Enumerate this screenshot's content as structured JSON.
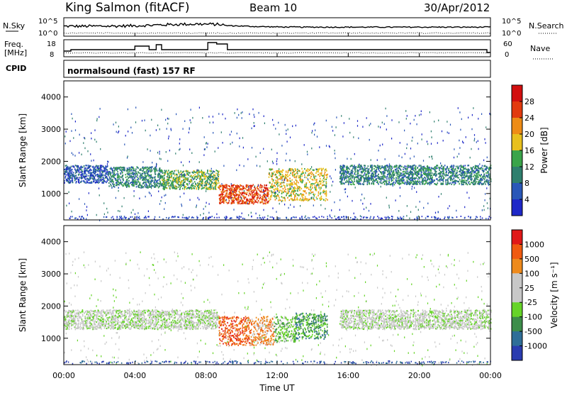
{
  "header": {
    "station": "King Salmon (fitACF)",
    "beam": "Beam 10",
    "date": "30/Apr/2012"
  },
  "panels": {
    "nsky_label": "N.Sky",
    "nsearch_label": "N.Search",
    "nsky_ticks": [
      "10^5",
      "10^0"
    ],
    "freq_label": [
      "Freq.",
      "[MHz]"
    ],
    "freq_ticks": [
      "18",
      "8"
    ],
    "nave_label": "Nave",
    "nave_ticks": [
      "60",
      "0"
    ],
    "cpid_label": "CPID",
    "cpid_text": "normalsound (fast) 157 RF"
  },
  "chart_data": [
    {
      "type": "heatmap",
      "title": "",
      "xlabel": "",
      "ylabel": "Slant Range [km]",
      "xlim": [
        "00:00",
        "24:00"
      ],
      "ylim": [
        180,
        4500
      ],
      "yticks": [
        "1000",
        "2000",
        "3000",
        "4000"
      ],
      "colorbar_label": "Power [dB]",
      "colorbar_ticks": [
        "4",
        "8",
        "12",
        "16",
        "20",
        "24",
        "28"
      ],
      "colorbar_colors": [
        "#1e28c8",
        "#2a57b8",
        "#2f7f6e",
        "#3aa44a",
        "#e8c01e",
        "#ee8c16",
        "#e23a0e",
        "#d20f0f"
      ],
      "bands": [
        {
          "t0": 0.0,
          "t1": 2.5,
          "r0": 1350,
          "r1": 1900,
          "level": 1
        },
        {
          "t0": 2.5,
          "t1": 5.5,
          "r0": 1200,
          "r1": 1850,
          "level": 2
        },
        {
          "t0": 5.5,
          "t1": 8.7,
          "r0": 1150,
          "r1": 1750,
          "level": 3
        },
        {
          "t0": 8.7,
          "t1": 11.5,
          "r0": 700,
          "r1": 1300,
          "level": 6
        },
        {
          "t0": 11.5,
          "t1": 14.8,
          "r0": 800,
          "r1": 1800,
          "level": 4
        },
        {
          "t0": 15.5,
          "t1": 24.0,
          "r0": 1300,
          "r1": 1900,
          "level": 2
        }
      ]
    },
    {
      "type": "heatmap",
      "title": "",
      "xlabel": "Time UT",
      "ylabel": "Slant Range [km]",
      "xlim": [
        "00:00",
        "24:00"
      ],
      "ylim": [
        180,
        4500
      ],
      "xticks": [
        "00:00",
        "04:00",
        "08:00",
        "12:00",
        "16:00",
        "20:00",
        "00:00"
      ],
      "yticks": [
        "1000",
        "2000",
        "3000",
        "4000"
      ],
      "colorbar_label": "Velocity [m s⁻¹]",
      "colorbar_ticks": [
        "1000",
        "500",
        "100",
        "25",
        "-25",
        "-100",
        "-500",
        "-1000"
      ],
      "colorbar_colors": [
        "#2a3cb0",
        "#2f6e98",
        "#3d8d4a",
        "#66d428",
        "#c8c8c8",
        "#c8c8c8",
        "#ee8a1c",
        "#f05a10",
        "#e01818"
      ],
      "bands": [
        {
          "t0": 0.0,
          "t1": 8.7,
          "r0": 1300,
          "r1": 1900,
          "level": 4
        },
        {
          "t0": 8.7,
          "t1": 10.5,
          "r0": 800,
          "r1": 1700,
          "level": 7
        },
        {
          "t0": 10.5,
          "t1": 11.8,
          "r0": 800,
          "r1": 1700,
          "level": 6
        },
        {
          "t0": 11.8,
          "t1": 13.0,
          "r0": 900,
          "r1": 1700,
          "level": 3
        },
        {
          "t0": 13.0,
          "t1": 14.8,
          "r0": 1000,
          "r1": 1800,
          "level": 2
        },
        {
          "t0": 15.5,
          "t1": 24.0,
          "r0": 1300,
          "r1": 1900,
          "level": 4
        }
      ]
    }
  ]
}
